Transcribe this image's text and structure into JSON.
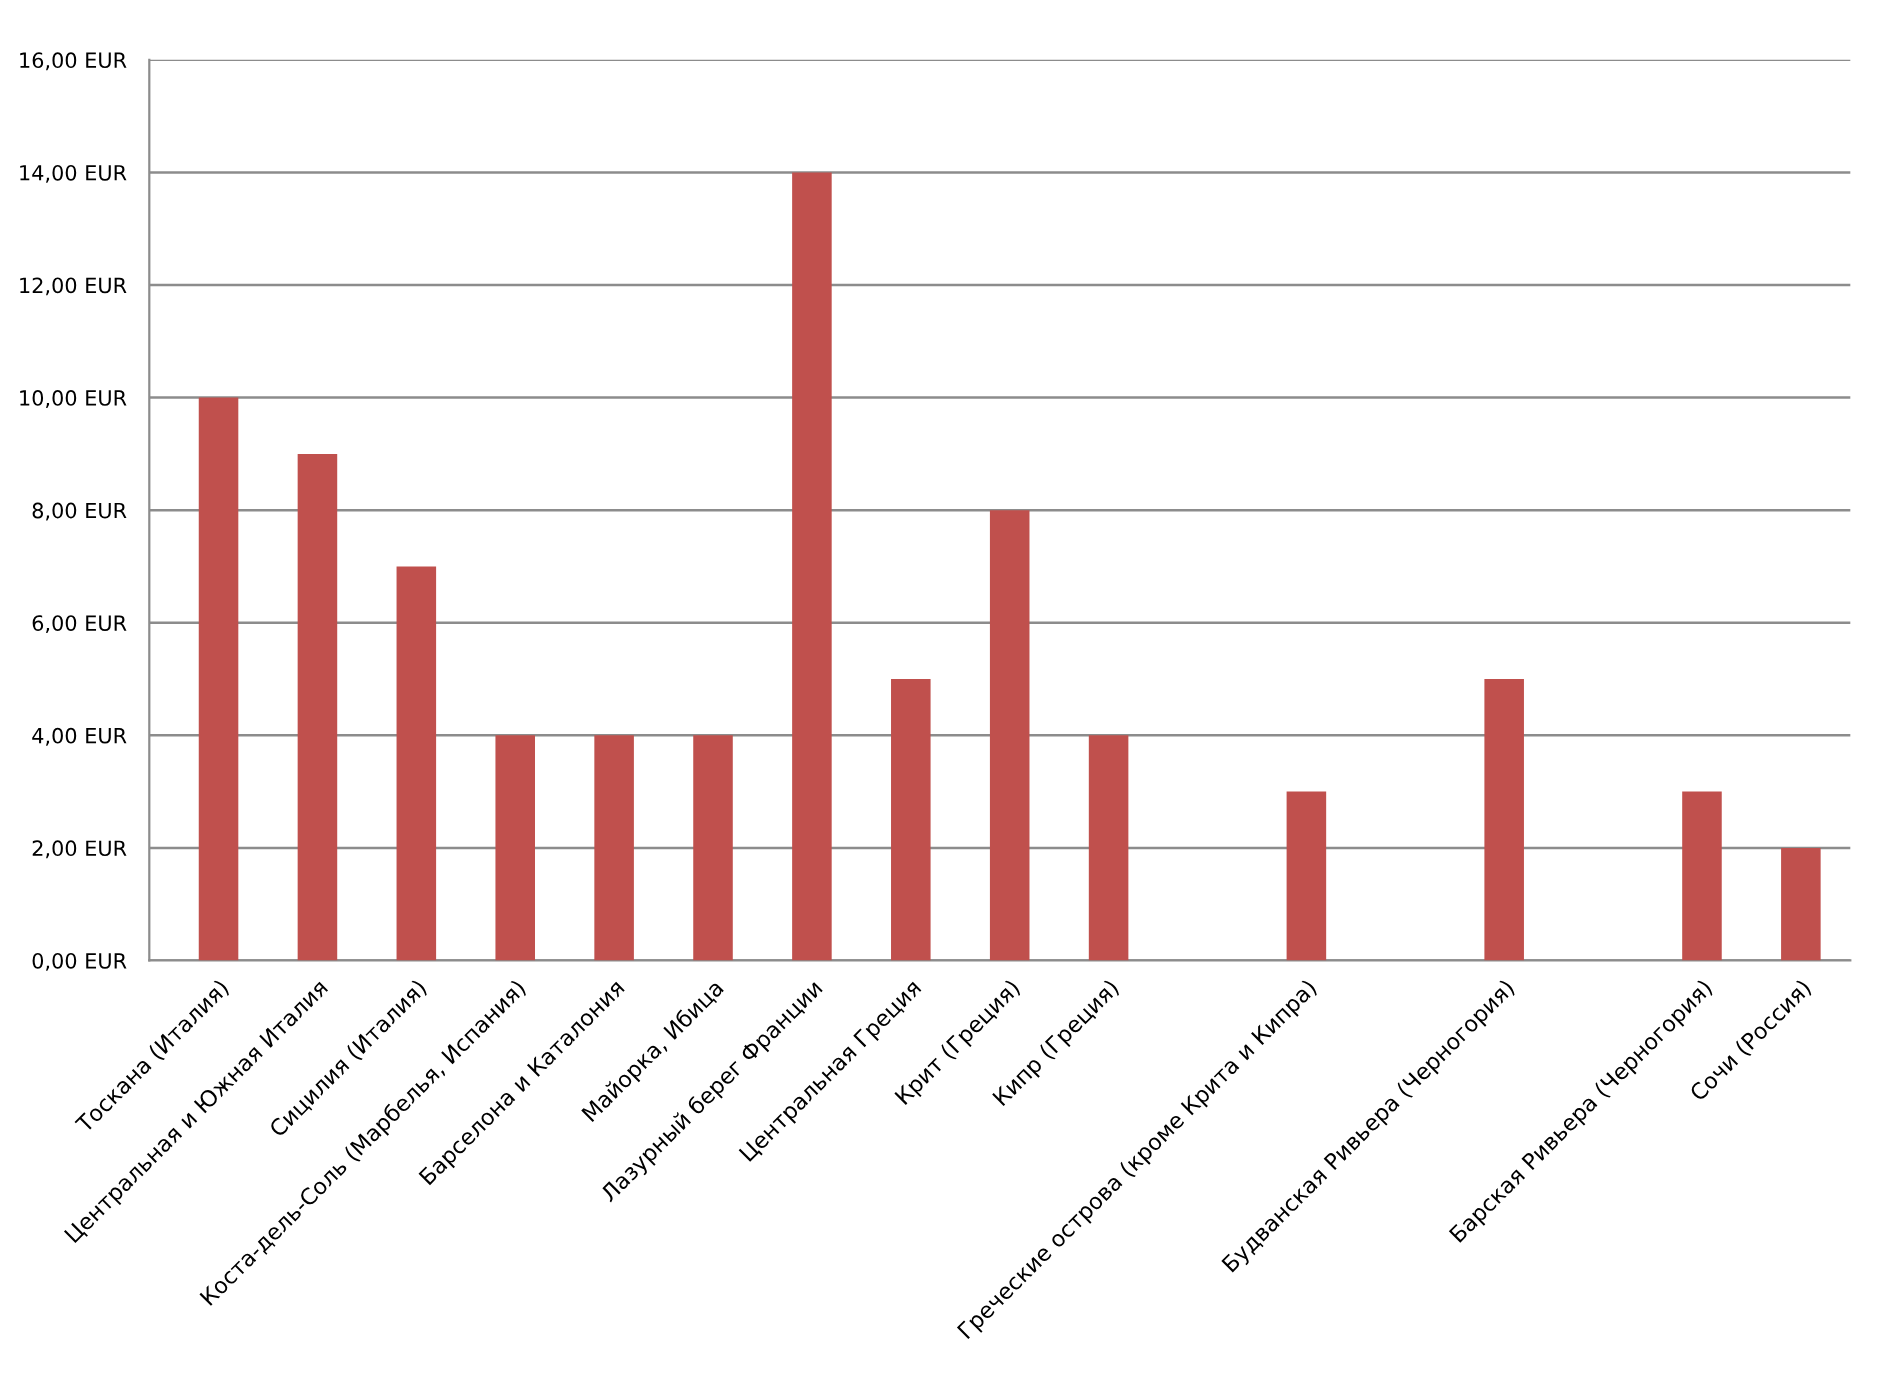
{
  "chart_data": {
    "type": "bar",
    "categories": [
      "Тоскана (Италия)",
      "Центральная и Южная Италия",
      "Сицилия (Италия)",
      "Коста-дель-Соль (Марбелья, Испания)",
      "Барселона и Каталония",
      "Майорка, Ибица",
      "Лазурный берег Франции",
      "Центральная Греция",
      "Крит (Греция)",
      "Кипр (Греция)",
      null,
      "Греческие острова (кроме Крита и Кипра)",
      null,
      "Будванская Ривьера (Черногория)",
      null,
      "Барская Ривьера (Черногория)",
      "Сочи (Россия)"
    ],
    "values": [
      10,
      9,
      7,
      4,
      4,
      4,
      14,
      5,
      8,
      4,
      null,
      3,
      null,
      5,
      null,
      3,
      2
    ],
    "color": "#c0504d",
    "ylim": [
      0,
      16
    ],
    "yticks": [
      {
        "value": 0,
        "label": "0,00 EUR"
      },
      {
        "value": 2,
        "label": "2,00 EUR"
      },
      {
        "value": 4,
        "label": "4,00 EUR"
      },
      {
        "value": 6,
        "label": "6,00 EUR"
      },
      {
        "value": 8,
        "label": "8,00 EUR"
      },
      {
        "value": 10,
        "label": "10,00 EUR"
      },
      {
        "value": 12,
        "label": "12,00 EUR"
      },
      {
        "value": 14,
        "label": "14,00 EUR"
      },
      {
        "value": 16,
        "label": "16,00 EUR"
      }
    ],
    "grid": "y",
    "legend": false
  }
}
